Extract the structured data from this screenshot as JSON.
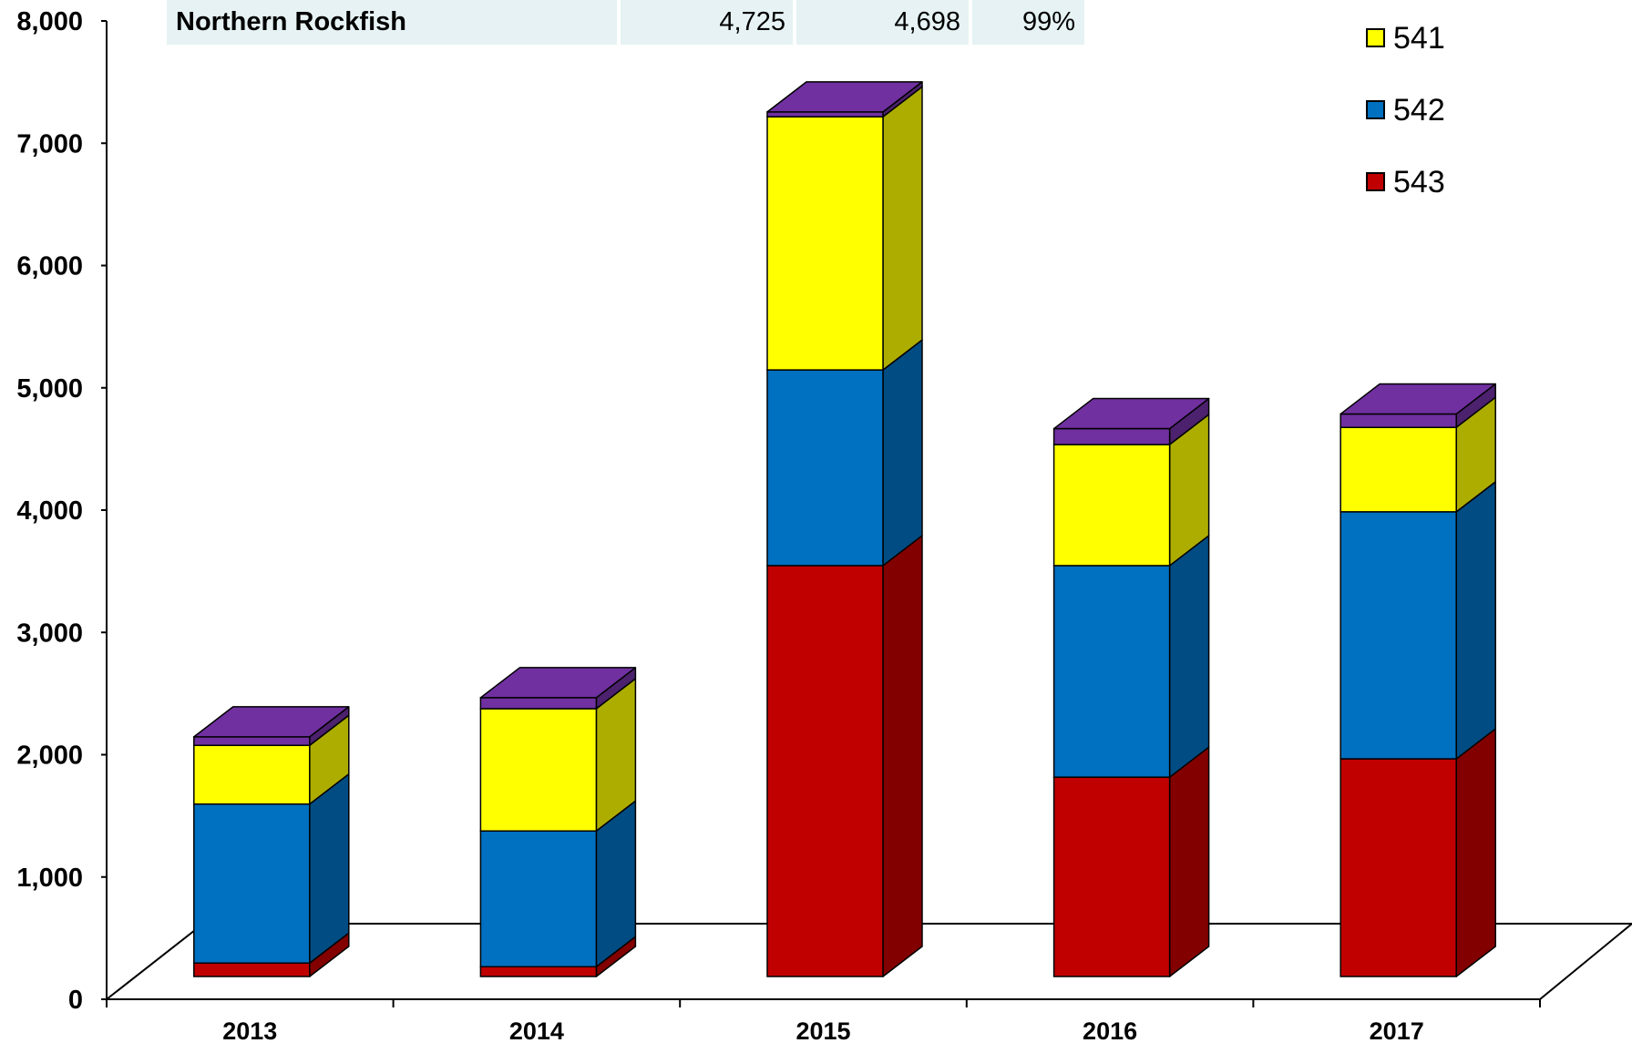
{
  "header_row": {
    "name": "Northern Rockfish",
    "values": [
      "4,725",
      "4,698",
      "99%"
    ]
  },
  "colors": {
    "541": "#ffff00",
    "542": "#0070c0",
    "543": "#c00000",
    "top": "#7030a0",
    "table_bg": "#e6f2f3"
  },
  "chart_data": {
    "type": "bar",
    "stacked": true,
    "three_d": true,
    "categories": [
      "2013",
      "2014",
      "2015",
      "2016",
      "2017"
    ],
    "series": [
      {
        "name": "543",
        "values": [
          110,
          80,
          3360,
          1630,
          1780
        ]
      },
      {
        "name": "542",
        "values": [
          1300,
          1110,
          1600,
          1730,
          2020
        ]
      },
      {
        "name": "541",
        "values": [
          480,
          1000,
          2070,
          990,
          690
        ]
      }
    ],
    "top_values": [
      70,
      90,
      40,
      130,
      110
    ],
    "ylim": [
      0,
      8000
    ],
    "yticks": [
      "0",
      "1,000",
      "2,000",
      "3,000",
      "4,000",
      "5,000",
      "6,000",
      "7,000",
      "8,000"
    ],
    "legend_position": "top-right"
  }
}
